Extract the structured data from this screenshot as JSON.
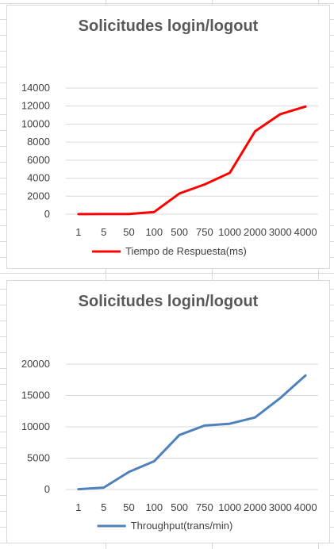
{
  "chart_data": [
    {
      "type": "line",
      "title": "Solicitudes login/logout",
      "categories": [
        "1",
        "5",
        "50",
        "100",
        "500",
        "750",
        "1000",
        "2000",
        "3000",
        "4000"
      ],
      "series": [
        {
          "name": "Tiempo de Respuesta(ms)",
          "color": "#ff0000",
          "values": [
            10,
            15,
            30,
            250,
            2300,
            3300,
            4600,
            9200,
            11100,
            11950
          ]
        }
      ],
      "yticks": [
        "0",
        "2000",
        "4000",
        "6000",
        "8000",
        "10000",
        "12000",
        "14000"
      ],
      "ylim": [
        0,
        14000
      ],
      "grid": true,
      "legend_position": "bottom"
    },
    {
      "type": "line",
      "title": "Solicitudes login/logout",
      "categories": [
        "1",
        "5",
        "50",
        "100",
        "500",
        "750",
        "1000",
        "2000",
        "3000",
        "4000"
      ],
      "series": [
        {
          "name": "Throughput(trans/min)",
          "color": "#4f81bd",
          "values": [
            50,
            300,
            2800,
            4500,
            8700,
            10200,
            10500,
            11500,
            14600,
            18200
          ]
        }
      ],
      "yticks": [
        "0",
        "5000",
        "10000",
        "15000",
        "20000"
      ],
      "ylim": [
        0,
        20000
      ],
      "grid": true,
      "legend_position": "bottom"
    }
  ]
}
